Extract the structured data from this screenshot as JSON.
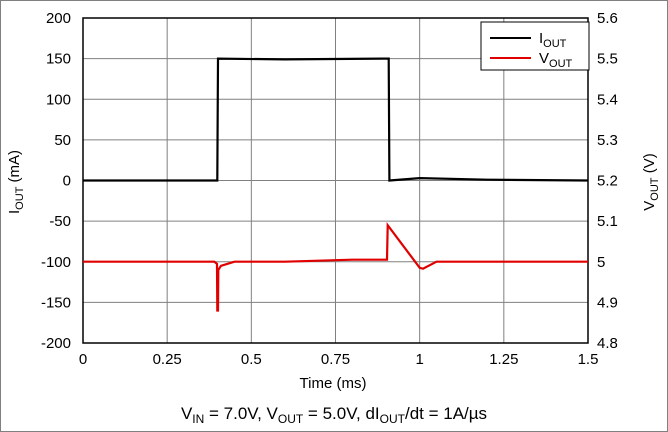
{
  "chart_data": {
    "type": "line",
    "caption": {
      "vin_label": "V",
      "vin_sub": "IN",
      "vin_value": " = 7.0V, ",
      "vout_label": "V",
      "vout_sub": "OUT",
      "vout_value": " = 5.0V, ",
      "di_label": "dI",
      "di_sub": "OUT",
      "di_value": "/dt = 1A/µs"
    },
    "xlabel": "Time (ms)",
    "ylabel_left": {
      "main": "I",
      "sub": "OUT",
      "unit": " (mA)"
    },
    "ylabel_right": {
      "main": "V",
      "sub": "OUT",
      "unit": " (V)"
    },
    "xlim": [
      0,
      1.5
    ],
    "ylim_left": [
      -200,
      200
    ],
    "ylim_right": [
      4.8,
      5.6
    ],
    "x_ticks": [
      "0",
      "0.25",
      "0.5",
      "0.75",
      "1",
      "1.25",
      "1.5"
    ],
    "x_tick_values": [
      0,
      0.25,
      0.5,
      0.75,
      1,
      1.25,
      1.5
    ],
    "y_ticks_left": [
      "200",
      "150",
      "100",
      "50",
      "0",
      "-50",
      "-100",
      "-150",
      "-200"
    ],
    "y_tick_values_left": [
      200,
      150,
      100,
      50,
      0,
      -50,
      -100,
      -150,
      -200
    ],
    "y_ticks_right": [
      "5.6",
      "5.5",
      "5.4",
      "5.3",
      "5.2",
      "5.1",
      "5",
      "4.9",
      "4.8"
    ],
    "y_tick_values_right": [
      5.6,
      5.5,
      5.4,
      5.3,
      5.2,
      5.1,
      5.0,
      4.9,
      4.8
    ],
    "grid": true,
    "legend_position": "top-right",
    "series": [
      {
        "name": "I",
        "name_sub": "OUT",
        "axis": "left",
        "color": "#000000",
        "x": [
          0,
          0.399,
          0.401,
          0.6,
          0.9,
          0.908,
          0.91,
          1.0,
          1.2,
          1.5
        ],
        "y": [
          0,
          0,
          150,
          149,
          150,
          150,
          0,
          3,
          1,
          0
        ]
      },
      {
        "name": "V",
        "name_sub": "OUT",
        "axis": "right",
        "color": "#e00000",
        "x": [
          0,
          0.39,
          0.398,
          0.399,
          0.401,
          0.402,
          0.41,
          0.45,
          0.6,
          0.8,
          0.903,
          0.905,
          1.0,
          1.01,
          1.05,
          1.2,
          1.5
        ],
        "y": [
          5.0,
          5.0,
          4.995,
          4.88,
          4.88,
          4.98,
          4.99,
          5.0,
          5.0,
          5.005,
          5.005,
          5.09,
          4.985,
          4.983,
          5.0,
          5.0,
          5.0
        ]
      }
    ]
  }
}
